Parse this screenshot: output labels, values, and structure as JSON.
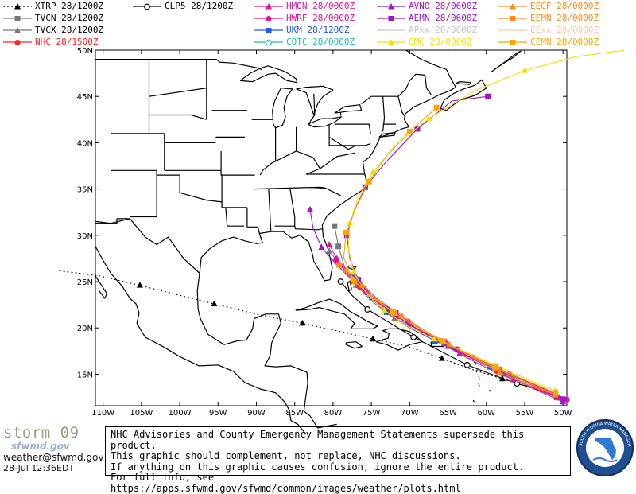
{
  "legend": [
    {
      "label": "XTRP 28/1200Z",
      "color": "#000000",
      "marker": "triangle",
      "dash": "2,3"
    },
    {
      "label": "TVCN 28/1200Z",
      "color": "#777777",
      "marker": "square",
      "dash": ""
    },
    {
      "label": "TVCX 28/1200Z",
      "color": "#777777",
      "marker": "triangle",
      "dash": ""
    },
    {
      "label": "NHC 28/1500Z",
      "color": "#ff2222",
      "marker": "circle",
      "dash": ""
    },
    {
      "label": "CLP5 28/1200Z",
      "color": "#000000",
      "marker": "circle-open",
      "dash": ""
    },
    {
      "label": "HMON 28/0000Z",
      "color": "#e0139e",
      "marker": "triangle",
      "dash": ""
    },
    {
      "label": "HWRF 28/0000Z",
      "color": "#e0139e",
      "marker": "circle",
      "dash": ""
    },
    {
      "label": "UKM 28/1200Z",
      "color": "#2255ff",
      "marker": "square",
      "dash": ""
    },
    {
      "label": "COTC 28/0000Z",
      "color": "#22bbbb",
      "marker": "circle-open",
      "dash": ""
    },
    {
      "label": "AVNO 28/0600Z",
      "color": "#9b18c9",
      "marker": "triangle",
      "dash": ""
    },
    {
      "label": "AEMN 28/0600Z",
      "color": "#9b18c9",
      "marker": "square",
      "dash": ""
    },
    {
      "label": "APxx 28/0600Z",
      "color": "#c7c7c7",
      "marker": "none",
      "dash": ""
    },
    {
      "label": "CMC 28/0000Z",
      "color": "#f2e000",
      "marker": "triangle",
      "dash": ""
    },
    {
      "label": "EECF 28/0000Z",
      "color": "#ff8a1c",
      "marker": "triangle",
      "dash": ""
    },
    {
      "label": "EEMN 28/0000Z",
      "color": "#ff8a1c",
      "marker": "square",
      "dash": ""
    },
    {
      "label": "EExx 28/0000Z",
      "color": "#ffc8b0",
      "marker": "none",
      "dash": ""
    },
    {
      "label": "CEMN 28/0000Z",
      "color": "#ffa500",
      "marker": "square",
      "dash": ""
    }
  ],
  "axes": {
    "lon_labels": [
      "110W",
      "105W",
      "100W",
      "95W",
      "90W",
      "85W",
      "80W",
      "75W",
      "70W",
      "65W",
      "60W",
      "55W",
      "50W"
    ],
    "lat_labels": [
      "50N",
      "45N",
      "40N",
      "35N",
      "30N",
      "25N",
      "20N",
      "15N"
    ]
  },
  "tracks": [
    {
      "model": "XTRP",
      "color": "#000000",
      "marker": "triangle",
      "dash": "2,3",
      "points": [
        [
          -50.8,
          12.5
        ],
        [
          -54.0,
          13.5
        ],
        [
          -57.9,
          14.5
        ],
        [
          -61.8,
          15.5
        ],
        [
          -65.8,
          16.7
        ],
        [
          -70.2,
          18.0
        ],
        [
          -74.8,
          18.8
        ],
        [
          -79.0,
          19.6
        ],
        [
          -84.0,
          20.5
        ],
        [
          -90.0,
          21.5
        ],
        [
          -95.5,
          22.6
        ],
        [
          -100.4,
          23.6
        ],
        [
          -105.2,
          24.6
        ],
        [
          -110.4,
          25.6
        ],
        [
          -116.0,
          26.2
        ]
      ]
    },
    {
      "model": "CLP5",
      "color": "#000000",
      "marker": "circle-open",
      "dash": "",
      "points": [
        [
          -50.8,
          12.5
        ],
        [
          -53.0,
          13.3
        ],
        [
          -56.0,
          14.0
        ],
        [
          -60.0,
          15.2
        ],
        [
          -62.5,
          16.0
        ],
        [
          -66.0,
          17.5
        ],
        [
          -69.5,
          19.0
        ],
        [
          -72.5,
          20.5
        ],
        [
          -75.5,
          22.0
        ],
        [
          -77.5,
          23.5
        ],
        [
          -79.0,
          25.0
        ]
      ]
    },
    {
      "model": "TVCN",
      "color": "#777777",
      "marker": "square",
      "dash": "",
      "points": [
        [
          -50.8,
          12.5
        ],
        [
          -55.0,
          14.0
        ],
        [
          -58.5,
          15.5
        ],
        [
          -62.0,
          17.0
        ],
        [
          -65.3,
          18.3
        ],
        [
          -68.5,
          19.7
        ],
        [
          -71.8,
          21.0
        ],
        [
          -74.5,
          22.8
        ],
        [
          -76.8,
          24.6
        ],
        [
          -78.5,
          26.6
        ],
        [
          -79.3,
          28.8
        ],
        [
          -79.8,
          31.0
        ]
      ]
    },
    {
      "model": "TVCX",
      "color": "#777777",
      "marker": "triangle",
      "dash": "",
      "points": [
        [
          -50.8,
          12.5
        ],
        [
          -55.0,
          14.0
        ],
        [
          -58.6,
          15.4
        ],
        [
          -62.0,
          16.9
        ],
        [
          -65.5,
          18.3
        ],
        [
          -68.8,
          19.6
        ],
        [
          -72.0,
          21.0
        ],
        [
          -74.8,
          22.8
        ],
        [
          -77.0,
          24.6
        ],
        [
          -78.8,
          26.6
        ],
        [
          -80.5,
          28.3
        ]
      ]
    },
    {
      "model": "NHC",
      "color": "#ff2222",
      "marker": "circle",
      "dash": "",
      "points": [
        [
          -50.8,
          12.5
        ],
        [
          -55.0,
          13.9
        ],
        [
          -58.6,
          15.3
        ],
        [
          -62.0,
          16.8
        ],
        [
          -65.2,
          18.3
        ],
        [
          -68.6,
          19.7
        ],
        [
          -71.6,
          21.2
        ],
        [
          -74.3,
          22.8
        ],
        [
          -76.5,
          24.4
        ],
        [
          -78.4,
          26.0
        ],
        [
          -79.5,
          27.3
        ]
      ]
    },
    {
      "model": "HMON",
      "color": "#e0139e",
      "marker": "triangle",
      "dash": "",
      "points": [
        [
          -49.5,
          12.3
        ],
        [
          -53.0,
          13.3
        ],
        [
          -56.5,
          14.4
        ],
        [
          -60.0,
          15.7
        ],
        [
          -63.5,
          17.2
        ],
        [
          -66.8,
          18.8
        ],
        [
          -70.0,
          20.4
        ],
        [
          -73.0,
          22.0
        ],
        [
          -75.5,
          23.8
        ],
        [
          -77.7,
          25.7
        ],
        [
          -79.5,
          27.5
        ],
        [
          -80.5,
          29.0
        ]
      ]
    },
    {
      "model": "HWRF",
      "color": "#e0139e",
      "marker": "circle",
      "dash": "",
      "points": [
        [
          -49.5,
          12.3
        ],
        [
          -53.5,
          13.8
        ],
        [
          -57.0,
          15.0
        ],
        [
          -60.5,
          16.2
        ],
        [
          -63.8,
          17.7
        ],
        [
          -67.0,
          19.2
        ],
        [
          -70.2,
          20.7
        ],
        [
          -73.2,
          22.2
        ],
        [
          -75.8,
          24.0
        ],
        [
          -78.0,
          25.8
        ],
        [
          -79.6,
          27.4
        ]
      ]
    },
    {
      "model": "UKM",
      "color": "#2255ff",
      "marker": "square",
      "dash": "",
      "points": [
        [
          -51.0,
          12.8
        ],
        [
          -55.5,
          14.4
        ],
        [
          -59.5,
          15.8
        ],
        [
          -63.2,
          17.2
        ],
        [
          -66.7,
          18.6
        ],
        [
          -70.0,
          20.0
        ],
        [
          -73.0,
          21.7
        ],
        [
          -75.4,
          23.5
        ],
        [
          -77.4,
          25.5
        ]
      ]
    },
    {
      "model": "AVNO",
      "color": "#9b18c9",
      "marker": "triangle",
      "dash": "",
      "points": [
        [
          -50.0,
          12.0
        ],
        [
          -54.0,
          13.5
        ],
        [
          -57.7,
          15.0
        ],
        [
          -61.4,
          16.5
        ],
        [
          -65.0,
          18.0
        ],
        [
          -68.5,
          19.6
        ],
        [
          -71.8,
          21.3
        ],
        [
          -74.6,
          23.2
        ],
        [
          -77.3,
          25.0
        ],
        [
          -79.5,
          26.8
        ],
        [
          -81.5,
          28.7
        ],
        [
          -82.6,
          30.8
        ],
        [
          -83.0,
          32.8
        ]
      ]
    },
    {
      "model": "AEMN",
      "color": "#9b18c9",
      "marker": "square",
      "dash": "",
      "points": [
        [
          -50.0,
          12.3
        ],
        [
          -54.5,
          14.0
        ],
        [
          -58.3,
          15.5
        ],
        [
          -62.0,
          17.0
        ],
        [
          -65.5,
          18.5
        ],
        [
          -68.8,
          20.0
        ],
        [
          -71.8,
          21.6
        ],
        [
          -74.5,
          23.3
        ],
        [
          -76.7,
          25.2
        ],
        [
          -77.8,
          27.5
        ],
        [
          -78.2,
          30.0
        ],
        [
          -77.3,
          32.5
        ],
        [
          -75.8,
          35.2
        ],
        [
          -73.0,
          38.0
        ],
        [
          -69.0,
          41.5
        ],
        [
          -64.5,
          44.5
        ],
        [
          -59.8,
          45.0
        ]
      ]
    },
    {
      "model": "CMC",
      "color": "#f2e000",
      "marker": "triangle",
      "dash": "",
      "points": [
        [
          -51.0,
          13.2
        ],
        [
          -55.0,
          14.6
        ],
        [
          -59.0,
          16.0
        ],
        [
          -63.0,
          17.5
        ],
        [
          -66.8,
          18.8
        ],
        [
          -70.3,
          20.2
        ],
        [
          -73.3,
          21.9
        ],
        [
          -75.7,
          23.8
        ],
        [
          -77.3,
          26.0
        ],
        [
          -78.0,
          28.6
        ],
        [
          -77.8,
          31.3
        ],
        [
          -76.8,
          34.0
        ],
        [
          -74.8,
          36.8
        ],
        [
          -72.0,
          39.6
        ],
        [
          -67.5,
          42.6
        ],
        [
          -61.5,
          45.6
        ],
        [
          -55.0,
          47.8
        ],
        [
          -48.2,
          49.3
        ],
        [
          -42.0,
          50.0
        ]
      ]
    },
    {
      "model": "EECF",
      "color": "#ff8a1c",
      "marker": "triangle",
      "dash": "",
      "points": [
        [
          -51.0,
          12.8
        ],
        [
          -54.8,
          13.9
        ],
        [
          -58.3,
          15.2
        ],
        [
          -61.6,
          16.7
        ],
        [
          -64.8,
          18.2
        ],
        [
          -68.0,
          19.7
        ],
        [
          -71.0,
          21.3
        ],
        [
          -73.8,
          22.9
        ],
        [
          -76.2,
          24.6
        ],
        [
          -78.3,
          26.2
        ]
      ]
    },
    {
      "model": "EEMN",
      "color": "#ff8a1c",
      "marker": "square",
      "dash": "",
      "points": [
        [
          -51.0,
          12.8
        ],
        [
          -55.2,
          14.3
        ],
        [
          -58.7,
          15.6
        ],
        [
          -62.2,
          17.0
        ],
        [
          -65.6,
          18.5
        ],
        [
          -68.9,
          20.0
        ],
        [
          -72.0,
          21.6
        ],
        [
          -74.8,
          23.3
        ],
        [
          -77.2,
          25.0
        ],
        [
          -79.2,
          26.8
        ]
      ]
    },
    {
      "model": "CEMN",
      "color": "#ffa500",
      "marker": "square",
      "dash": "",
      "points": [
        [
          -51.0,
          13.0
        ],
        [
          -55.0,
          14.4
        ],
        [
          -58.8,
          15.8
        ],
        [
          -62.4,
          17.2
        ],
        [
          -65.8,
          18.6
        ],
        [
          -69.0,
          20.1
        ],
        [
          -72.2,
          21.7
        ],
        [
          -75.0,
          23.4
        ],
        [
          -77.4,
          25.2
        ],
        [
          -78.6,
          27.6
        ],
        [
          -78.3,
          30.3
        ],
        [
          -77.0,
          33.0
        ],
        [
          -75.3,
          35.8
        ],
        [
          -73.0,
          38.6
        ],
        [
          -70.0,
          41.2
        ],
        [
          -66.5,
          43.8
        ]
      ]
    }
  ],
  "storm_name": "storm_09",
  "sfwmd_logo_text": "sfwmd.gov",
  "contact_email": "weather@sfwmd.gov",
  "timestamp": "28-Jul 12:36EDT",
  "disclaimer": [
    "NHC Advisories and County Emergency Management Statements supersede this product.",
    "This graphic should complement, not replace, NHC discussions.",
    "If anything on this graphic causes confusion, ignore the entire product.",
    "For full info, see  https://apps.sfwmd.gov/sfwmd/common/images/weather/plots.html"
  ],
  "seal_text": "SOUTH FLORIDA WATER MANAGEMENT DISTRICT"
}
